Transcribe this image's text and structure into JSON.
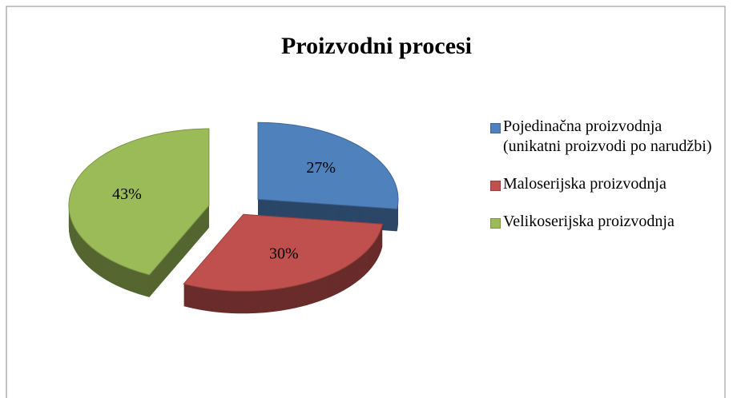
{
  "chart_data": {
    "type": "pie",
    "title": "Proizvodni procesi",
    "categories": [
      "Pojedinačna proizvodnja (unikatni proizvodi po narudžbi)",
      "Maloserijska proizvodnja",
      "Velikoserijska proizvodnja"
    ],
    "values": [
      27,
      30,
      43
    ],
    "value_labels": [
      "27%",
      "30%",
      "43%"
    ],
    "colors": [
      "#4f81bd",
      "#c0504d",
      "#9bbb59"
    ],
    "legend": "right"
  }
}
